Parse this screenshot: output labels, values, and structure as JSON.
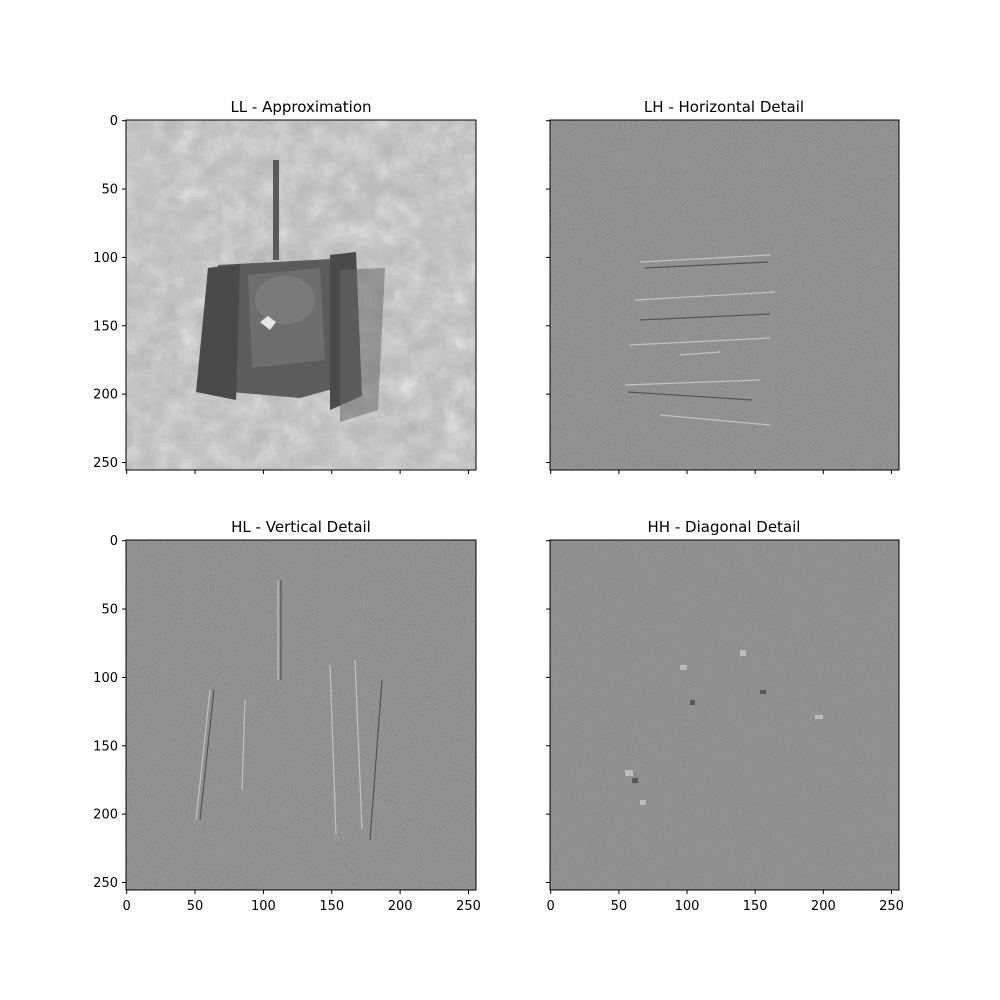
{
  "figure": {
    "panels": [
      {
        "id": "ll",
        "title": "LL - Approximation",
        "kind": "approximation",
        "tone": "#a6a6a6"
      },
      {
        "id": "lh",
        "title": "LH - Horizontal Detail",
        "kind": "detail",
        "tone": "#7f7f7f"
      },
      {
        "id": "hl",
        "title": "HL - Vertical Detail",
        "kind": "detail",
        "tone": "#7f7f7f"
      },
      {
        "id": "hh",
        "title": "HH - Diagonal Detail",
        "kind": "detail",
        "tone": "#7f7f7f"
      }
    ],
    "y_ticks": [
      "0",
      "50",
      "100",
      "150",
      "200",
      "250"
    ],
    "x_ticks": [
      "0",
      "50",
      "100",
      "150",
      "200",
      "250"
    ],
    "image_extent": 256,
    "colormap": "gray"
  }
}
